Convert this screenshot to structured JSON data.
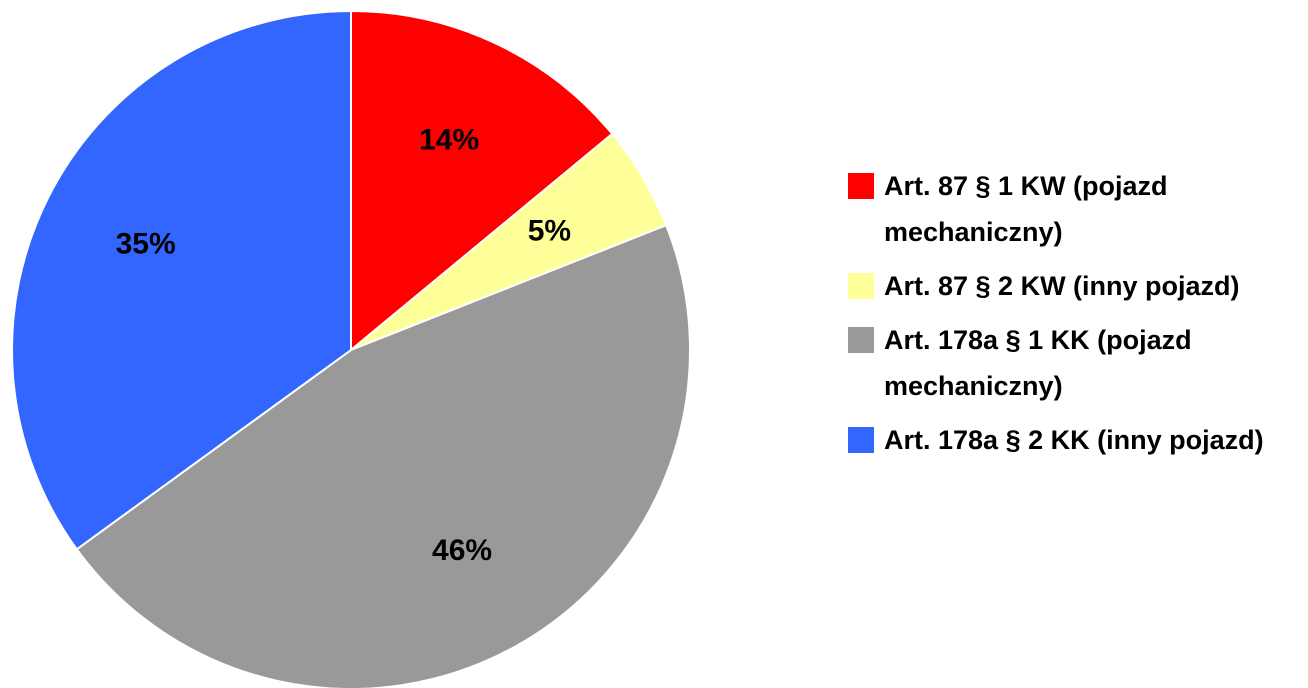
{
  "chart_data": {
    "type": "pie",
    "categories": [
      "Art. 87 § 1 KW (pojazd mechaniczny)",
      "Art. 87 § 2 KW (inny pojazd)",
      "Art. 178a § 1 KK (pojazd mechaniczny)",
      "Art. 178a § 2 KK (inny pojazd)"
    ],
    "values": [
      14,
      5,
      46,
      35
    ],
    "value_labels": [
      "14%",
      "5%",
      "46%",
      "35%"
    ],
    "colors": [
      "#ff0000",
      "#ffff99",
      "#999999",
      "#3366ff"
    ],
    "legend": "right"
  }
}
